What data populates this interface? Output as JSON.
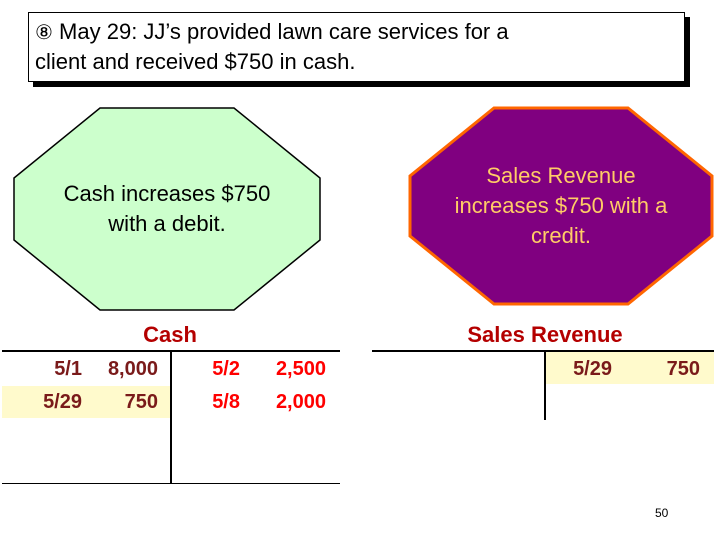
{
  "header": {
    "marker": "⑧",
    "line1": " May 29: JJ’s provided lawn care services for a",
    "line2": "client and received $750 in cash."
  },
  "debit_note": {
    "line1": "Cash increases $750",
    "line2": "with a debit."
  },
  "credit_note": {
    "line1": "Sales Revenue",
    "line2": "increases $750 with a",
    "line3": "credit."
  },
  "cash_account": {
    "title": "Cash",
    "debits": [
      {
        "date": "5/1",
        "amount": "8,000"
      },
      {
        "date": "5/29",
        "amount": "750"
      }
    ],
    "credits": [
      {
        "date": "5/2",
        "amount": "2,500"
      },
      {
        "date": "5/8",
        "amount": "2,000"
      }
    ]
  },
  "revenue_account": {
    "title": "Sales Revenue",
    "credits": [
      {
        "date": "5/29",
        "amount": "750"
      }
    ]
  },
  "colors": {
    "debit_note_fill": "#ccffcc",
    "credit_note_fill": "#800080",
    "credit_note_border": "#ff6600",
    "account_title": "#b40000",
    "credit_amount": "#ff0000",
    "highlight": "#fffacc"
  },
  "footer": {
    "page_number": "50"
  }
}
